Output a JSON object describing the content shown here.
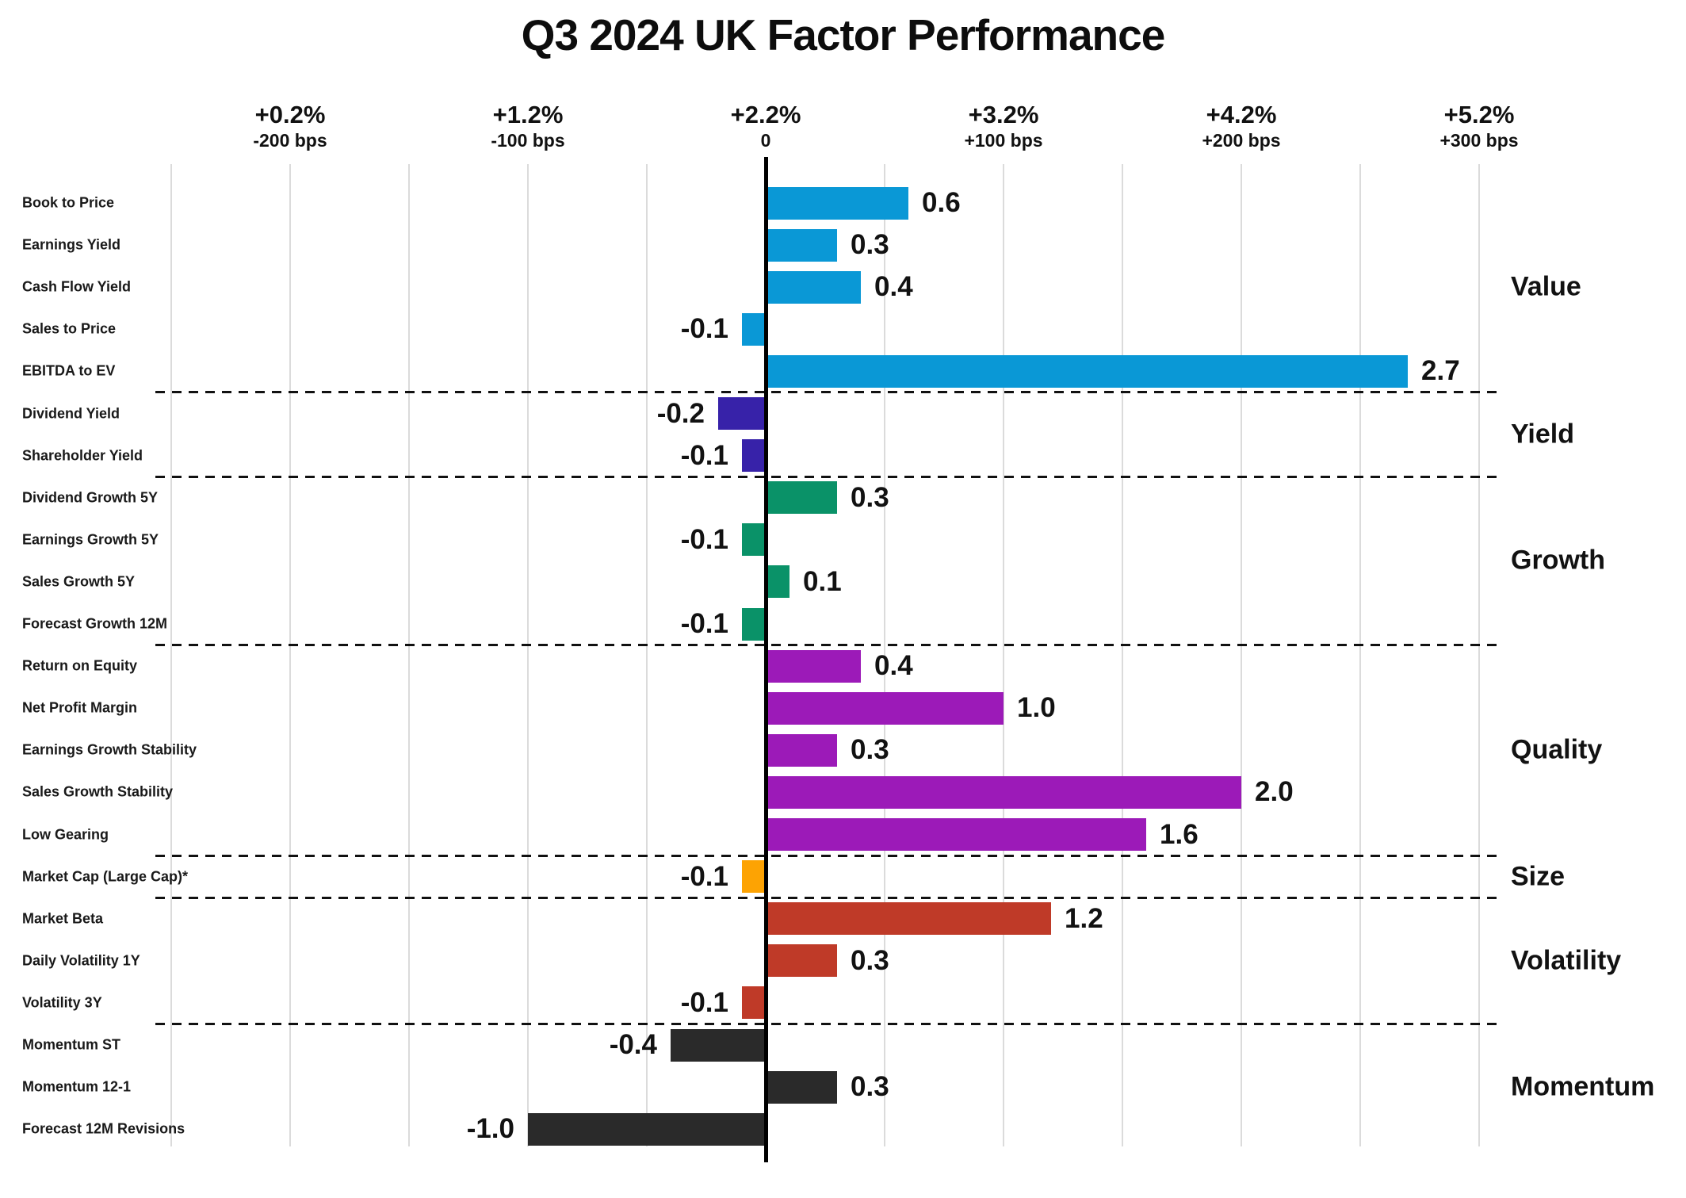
{
  "title": "Q3 2024 UK Factor Performance",
  "chart_data": {
    "type": "bar",
    "orientation": "horizontal",
    "title": "Q3 2024 UK Factor Performance",
    "value_units": "percent (1.0 = 100 bps)",
    "grid": true,
    "legend_position": "group labels on right",
    "x_axis": {
      "xlim": [
        -2.5,
        3.0
      ],
      "gridline_step": 0.5,
      "ticks": [
        {
          "pct": "+0.2%",
          "bps": "-200 bps",
          "value": -2
        },
        {
          "pct": "+1.2%",
          "bps": "-100 bps",
          "value": -1
        },
        {
          "pct": "+2.2%",
          "bps": "0",
          "value": 0
        },
        {
          "pct": "+3.2%",
          "bps": "+100 bps",
          "value": 1
        },
        {
          "pct": "+4.2%",
          "bps": "+200 bps",
          "value": 2
        },
        {
          "pct": "+5.2%",
          "bps": "+300 bps",
          "value": 3
        }
      ]
    },
    "groups": [
      {
        "name": "Value",
        "color": "#0a98d6",
        "factors": [
          {
            "label": "Book to Price",
            "value": 0.6,
            "value_label": "0.6"
          },
          {
            "label": "Earnings Yield",
            "value": 0.3,
            "value_label": "0.3"
          },
          {
            "label": "Cash Flow Yield",
            "value": 0.4,
            "value_label": "0.4"
          },
          {
            "label": "Sales to Price",
            "value": -0.1,
            "value_label": "-0.1"
          },
          {
            "label": "EBITDA to EV",
            "value": 2.7,
            "value_label": "2.7"
          }
        ]
      },
      {
        "name": "Yield",
        "color": "#3722a9",
        "factors": [
          {
            "label": "Dividend Yield",
            "value": -0.2,
            "value_label": "-0.2"
          },
          {
            "label": "Shareholder Yield",
            "value": -0.1,
            "value_label": "-0.1"
          }
        ]
      },
      {
        "name": "Growth",
        "color": "#0a9268",
        "factors": [
          {
            "label": "Dividend Growth 5Y",
            "value": 0.3,
            "value_label": "0.3"
          },
          {
            "label": "Earnings Growth 5Y",
            "value": -0.1,
            "value_label": "-0.1"
          },
          {
            "label": "Sales Growth 5Y",
            "value": 0.1,
            "value_label": "0.1"
          },
          {
            "label": "Forecast Growth 12M",
            "value": -0.1,
            "value_label": "-0.1"
          }
        ]
      },
      {
        "name": "Quality",
        "color": "#9c1ab8",
        "factors": [
          {
            "label": "Return on Equity",
            "value": 0.4,
            "value_label": "0.4"
          },
          {
            "label": "Net Profit Margin",
            "value": 1.0,
            "value_label": "1.0"
          },
          {
            "label": "Earnings Growth Stability",
            "value": 0.3,
            "value_label": "0.3"
          },
          {
            "label": "Sales Growth Stability",
            "value": 2.0,
            "value_label": "2.0"
          },
          {
            "label": "Low Gearing",
            "value": 1.6,
            "value_label": "1.6"
          }
        ]
      },
      {
        "name": "Size",
        "color": "#fda303",
        "factors": [
          {
            "label": "Market Cap (Large Cap)*",
            "value": -0.1,
            "value_label": "-0.1"
          }
        ]
      },
      {
        "name": "Volatility",
        "color": "#bf3a28",
        "factors": [
          {
            "label": "Market Beta",
            "value": 1.2,
            "value_label": "1.2"
          },
          {
            "label": "Daily Volatility 1Y",
            "value": 0.3,
            "value_label": "0.3"
          },
          {
            "label": "Volatility 3Y",
            "value": -0.1,
            "value_label": "-0.1"
          }
        ]
      },
      {
        "name": "Momentum",
        "color": "#2a2a2a",
        "factors": [
          {
            "label": "Momentum ST",
            "value": -0.4,
            "value_label": "-0.4"
          },
          {
            "label": "Momentum 12-1",
            "value": 0.3,
            "value_label": "0.3"
          },
          {
            "label": "Forecast 12M Revisions",
            "value": -1.0,
            "value_label": "-1.0"
          }
        ]
      }
    ]
  }
}
